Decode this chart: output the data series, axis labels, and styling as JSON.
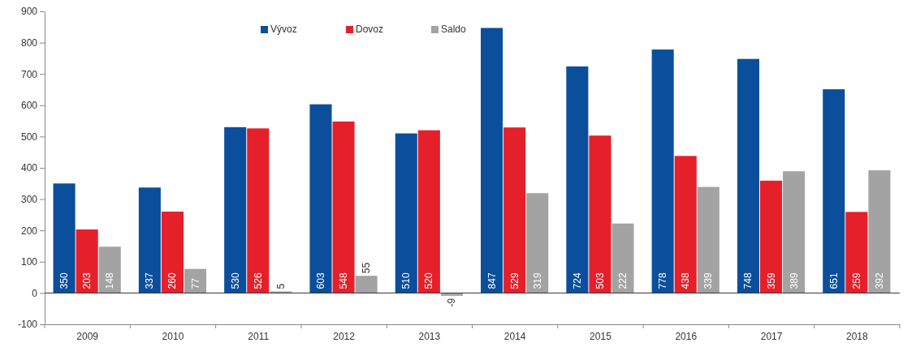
{
  "chart_data": {
    "type": "bar",
    "categories": [
      "2009",
      "2010",
      "2011",
      "2012",
      "2013",
      "2014",
      "2015",
      "2016",
      "2017",
      "2018"
    ],
    "series": [
      {
        "name": "Vývoz",
        "color": "#0b4f9c",
        "values": [
          350,
          337,
          530,
          603,
          510,
          847,
          724,
          778,
          748,
          651
        ]
      },
      {
        "name": "Dovoz",
        "color": "#e5202b",
        "values": [
          203,
          260,
          526,
          548,
          520,
          529,
          503,
          438,
          359,
          259
        ]
      },
      {
        "name": "Saldo",
        "color": "#a3a3a3",
        "values": [
          148,
          77,
          5,
          55,
          -9,
          319,
          222,
          339,
          389,
          392
        ]
      }
    ],
    "ylim": [
      -100,
      900
    ],
    "yticks": [
      -100,
      0,
      100,
      200,
      300,
      400,
      500,
      600,
      700,
      800,
      900
    ],
    "data_labels": true,
    "legend": "top"
  }
}
